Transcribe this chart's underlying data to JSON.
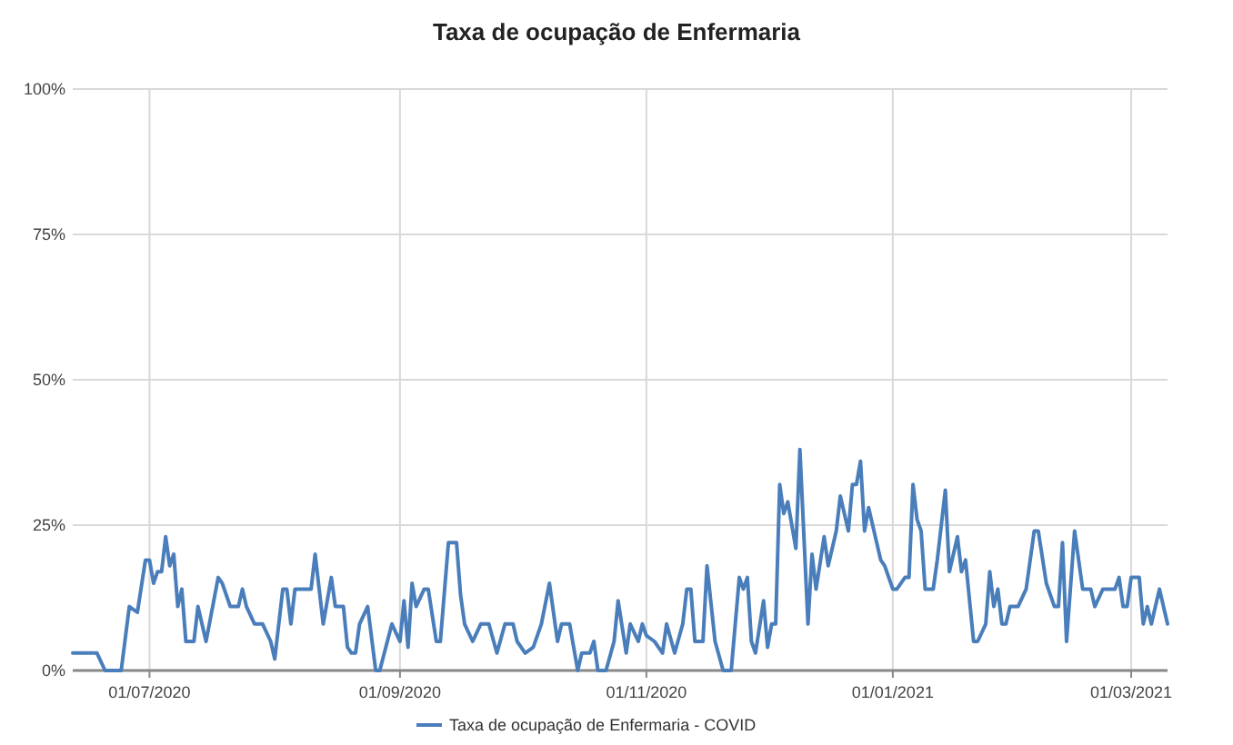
{
  "chart_data": {
    "type": "line",
    "title": "Taxa de ocupação de Enfermaria",
    "x": [
      "2020-06-12",
      "2020-06-18",
      "2020-06-20",
      "2020-06-24",
      "2020-06-26",
      "2020-06-28",
      "2020-06-30",
      "2020-07-01",
      "2020-07-02",
      "2020-07-03",
      "2020-07-04",
      "2020-07-05",
      "2020-07-06",
      "2020-07-07",
      "2020-07-08",
      "2020-07-09",
      "2020-07-10",
      "2020-07-12",
      "2020-07-13",
      "2020-07-15",
      "2020-07-18",
      "2020-07-19",
      "2020-07-21",
      "2020-07-23",
      "2020-07-24",
      "2020-07-25",
      "2020-07-27",
      "2020-07-29",
      "2020-07-31",
      "2020-08-01",
      "2020-08-03",
      "2020-08-04",
      "2020-08-05",
      "2020-08-06",
      "2020-08-10",
      "2020-08-11",
      "2020-08-13",
      "2020-08-15",
      "2020-08-16",
      "2020-08-18",
      "2020-08-19",
      "2020-08-20",
      "2020-08-21",
      "2020-08-22",
      "2020-08-24",
      "2020-08-26",
      "2020-08-27",
      "2020-08-30",
      "2020-09-01",
      "2020-09-02",
      "2020-09-03",
      "2020-09-04",
      "2020-09-05",
      "2020-09-07",
      "2020-09-08",
      "2020-09-10",
      "2020-09-11",
      "2020-09-13",
      "2020-09-15",
      "2020-09-16",
      "2020-09-17",
      "2020-09-19",
      "2020-09-21",
      "2020-09-23",
      "2020-09-25",
      "2020-09-27",
      "2020-09-29",
      "2020-09-30",
      "2020-10-02",
      "2020-10-04",
      "2020-10-06",
      "2020-10-08",
      "2020-10-10",
      "2020-10-11",
      "2020-10-13",
      "2020-10-15",
      "2020-10-16",
      "2020-10-18",
      "2020-10-19",
      "2020-10-20",
      "2020-10-22",
      "2020-10-24",
      "2020-10-25",
      "2020-10-27",
      "2020-10-28",
      "2020-10-30",
      "2020-10-31",
      "2020-11-01",
      "2020-11-03",
      "2020-11-05",
      "2020-11-06",
      "2020-11-08",
      "2020-11-10",
      "2020-11-11",
      "2020-11-12",
      "2020-11-13",
      "2020-11-15",
      "2020-11-16",
      "2020-11-18",
      "2020-11-20",
      "2020-11-22",
      "2020-11-24",
      "2020-11-25",
      "2020-11-26",
      "2020-11-27",
      "2020-11-28",
      "2020-11-30",
      "2020-12-01",
      "2020-12-02",
      "2020-12-03",
      "2020-12-04",
      "2020-12-05",
      "2020-12-06",
      "2020-12-08",
      "2020-12-09",
      "2020-12-11",
      "2020-12-12",
      "2020-12-13",
      "2020-12-15",
      "2020-12-16",
      "2020-12-18",
      "2020-12-19",
      "2020-12-21",
      "2020-12-22",
      "2020-12-23",
      "2020-12-24",
      "2020-12-25",
      "2020-12-26",
      "2020-12-29",
      "2020-12-30",
      "2021-01-01",
      "2021-01-02",
      "2021-01-04",
      "2021-01-05",
      "2021-01-06",
      "2021-01-07",
      "2021-01-08",
      "2021-01-09",
      "2021-01-11",
      "2021-01-12",
      "2021-01-14",
      "2021-01-15",
      "2021-01-17",
      "2021-01-18",
      "2021-01-19",
      "2021-01-21",
      "2021-01-22",
      "2021-01-24",
      "2021-01-25",
      "2021-01-26",
      "2021-01-27",
      "2021-01-28",
      "2021-01-29",
      "2021-01-30",
      "2021-02-01",
      "2021-02-03",
      "2021-02-05",
      "2021-02-06",
      "2021-02-08",
      "2021-02-10",
      "2021-02-11",
      "2021-02-12",
      "2021-02-13",
      "2021-02-15",
      "2021-02-17",
      "2021-02-19",
      "2021-02-20",
      "2021-02-22",
      "2021-02-25",
      "2021-02-26",
      "2021-02-27",
      "2021-02-28",
      "2021-03-01",
      "2021-03-03",
      "2021-03-04",
      "2021-03-05",
      "2021-03-06",
      "2021-03-08",
      "2021-03-10"
    ],
    "series": [
      {
        "name": "Taxa de ocupação de Enfermaria - COVID",
        "color": "#4a7ebb",
        "values": [
          3,
          3,
          0,
          0,
          11,
          10,
          19,
          19,
          15,
          17,
          17,
          23,
          18,
          20,
          11,
          14,
          5,
          5,
          11,
          5,
          16,
          15,
          11,
          11,
          14,
          11,
          8,
          8,
          5,
          2,
          14,
          14,
          8,
          14,
          14,
          20,
          8,
          16,
          11,
          11,
          4,
          3,
          3,
          8,
          11,
          0,
          0,
          8,
          5,
          12,
          4,
          15,
          11,
          14,
          14,
          5,
          5,
          22,
          22,
          13,
          8,
          5,
          8,
          8,
          3,
          8,
          8,
          5,
          3,
          4,
          8,
          15,
          5,
          8,
          8,
          0,
          3,
          3,
          5,
          0,
          0,
          5,
          12,
          3,
          8,
          5,
          8,
          6,
          5,
          3,
          8,
          3,
          8,
          14,
          14,
          5,
          5,
          18,
          5,
          0,
          0,
          16,
          14,
          16,
          5,
          3,
          12,
          4,
          8,
          8,
          32,
          27,
          29,
          21,
          38,
          8,
          20,
          14,
          23,
          18,
          24,
          30,
          24,
          32,
          32,
          36,
          24,
          28,
          19,
          18,
          14,
          14,
          16,
          16,
          32,
          26,
          24,
          14,
          14,
          19,
          31,
          17,
          23,
          17,
          19,
          5,
          5,
          8,
          17,
          11,
          14,
          8,
          8,
          11,
          11,
          14,
          24,
          24,
          15,
          11,
          11,
          22,
          5,
          24,
          14,
          14,
          11,
          14,
          14,
          16,
          11,
          11,
          16,
          16,
          8,
          11,
          8,
          14,
          8
        ]
      }
    ],
    "xlim": [
      "2020-06-12",
      "2021-03-10"
    ],
    "xticks": [
      {
        "value": "2020-07-01",
        "label": "01/07/2020"
      },
      {
        "value": "2020-09-01",
        "label": "01/09/2020"
      },
      {
        "value": "2020-11-01",
        "label": "01/11/2020"
      },
      {
        "value": "2021-01-01",
        "label": "01/01/2021"
      },
      {
        "value": "2021-03-01",
        "label": "01/03/2021"
      }
    ],
    "ylim": [
      0,
      100
    ],
    "yticks": [
      {
        "value": 0,
        "label": "0%"
      },
      {
        "value": 25,
        "label": "25%"
      },
      {
        "value": 50,
        "label": "50%"
      },
      {
        "value": 75,
        "label": "75%"
      },
      {
        "value": 100,
        "label": "100%"
      }
    ],
    "grid": true,
    "legend": "bottom",
    "marker": "none",
    "line_style": "solid"
  }
}
